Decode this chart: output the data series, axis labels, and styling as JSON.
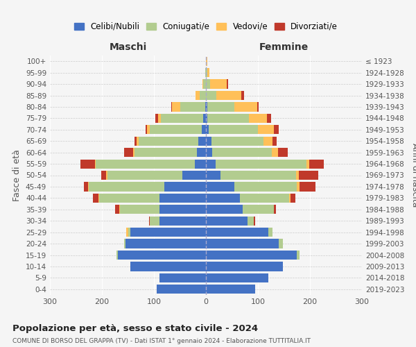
{
  "age_groups": [
    "0-4",
    "5-9",
    "10-14",
    "15-19",
    "20-24",
    "25-29",
    "30-34",
    "35-39",
    "40-44",
    "45-49",
    "50-54",
    "55-59",
    "60-64",
    "65-69",
    "70-74",
    "75-79",
    "80-84",
    "85-89",
    "90-94",
    "95-99",
    "100+"
  ],
  "birth_years": [
    "2019-2023",
    "2014-2018",
    "2009-2013",
    "2004-2008",
    "1999-2003",
    "1994-1998",
    "1989-1993",
    "1984-1988",
    "1979-1983",
    "1974-1978",
    "1969-1973",
    "1964-1968",
    "1959-1963",
    "1954-1958",
    "1949-1953",
    "1944-1948",
    "1939-1943",
    "1934-1938",
    "1929-1933",
    "1924-1928",
    "≤ 1923"
  ],
  "male": {
    "celibi": [
      95,
      90,
      145,
      170,
      155,
      145,
      90,
      90,
      90,
      80,
      45,
      22,
      18,
      15,
      8,
      5,
      2,
      0,
      0,
      0,
      0
    ],
    "coniugati": [
      0,
      0,
      0,
      2,
      3,
      5,
      18,
      75,
      115,
      145,
      145,
      190,
      120,
      115,
      100,
      82,
      48,
      12,
      5,
      2,
      0
    ],
    "vedovi": [
      0,
      0,
      0,
      0,
      0,
      3,
      0,
      2,
      2,
      2,
      2,
      2,
      2,
      3,
      6,
      5,
      15,
      8,
      2,
      0,
      0
    ],
    "divorziati": [
      0,
      0,
      0,
      0,
      0,
      0,
      2,
      8,
      10,
      8,
      10,
      28,
      18,
      5,
      2,
      5,
      2,
      0,
      0,
      0,
      0
    ]
  },
  "female": {
    "nubili": [
      95,
      120,
      148,
      175,
      140,
      120,
      80,
      70,
      65,
      55,
      28,
      18,
      12,
      10,
      5,
      2,
      2,
      0,
      0,
      0,
      0
    ],
    "coniugate": [
      0,
      0,
      0,
      5,
      8,
      8,
      12,
      60,
      95,
      120,
      145,
      175,
      115,
      100,
      95,
      80,
      52,
      20,
      8,
      2,
      0
    ],
    "vedove": [
      0,
      0,
      0,
      0,
      0,
      0,
      0,
      0,
      2,
      5,
      5,
      5,
      12,
      18,
      30,
      35,
      45,
      48,
      32,
      5,
      2
    ],
    "divorziate": [
      0,
      0,
      0,
      0,
      0,
      0,
      3,
      5,
      10,
      30,
      38,
      28,
      18,
      8,
      10,
      8,
      2,
      5,
      2,
      0,
      0
    ]
  },
  "colors": {
    "celibi": "#4472c4",
    "coniugati": "#b2cc8f",
    "vedovi": "#ffc059",
    "divorziati": "#c0392b"
  },
  "title": "Popolazione per età, sesso e stato civile - 2024",
  "subtitle": "COMUNE DI BORSO DEL GRAPPA (TV) - Dati ISTAT 1° gennaio 2024 - Elaborazione TUTTITALIA.IT",
  "xlabel_left": "Maschi",
  "xlabel_right": "Femmine",
  "ylabel_left": "Fasce di età",
  "ylabel_right": "Anni di nascita",
  "xlim": 300,
  "background_color": "#f5f5f5",
  "legend_labels": [
    "Celibi/Nubili",
    "Coniugati/e",
    "Vedovi/e",
    "Divorziati/e"
  ]
}
